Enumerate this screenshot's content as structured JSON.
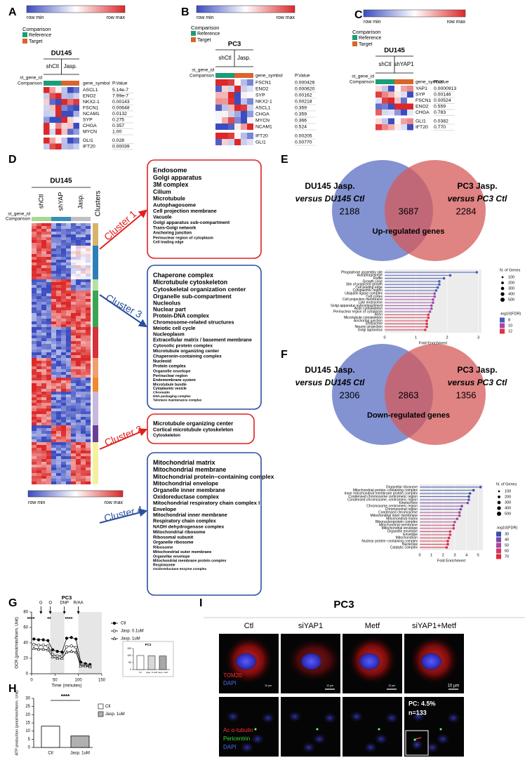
{
  "A": {
    "label": "A",
    "scale": [
      "row min",
      "row max"
    ],
    "legend_title": "Comparison",
    "legend": [
      "Reference",
      "Target"
    ],
    "cell_line": "DU145",
    "groups": [
      "shCtl",
      "Jasp."
    ],
    "row_keys": [
      "st_gene_id",
      "Comparison"
    ],
    "columns": [
      "gene_symbol",
      "P.Value"
    ],
    "rows": [
      [
        "ASCL1",
        "5.14e-7"
      ],
      [
        "ENO2",
        "7.99e-7"
      ],
      [
        "NKX2-1",
        "0.00143"
      ],
      [
        "FSCN1",
        "0.00648"
      ],
      [
        "NCAM1",
        "0.0132"
      ],
      [
        "SYP",
        "0.275"
      ],
      [
        "CHGA",
        "0.357"
      ],
      [
        "MYCN",
        "1.00"
      ]
    ],
    "rows2": [
      [
        "GLI1",
        "0.028"
      ],
      [
        "IFT20",
        "0.00039"
      ]
    ]
  },
  "B": {
    "label": "B",
    "scale": [
      "row min",
      "row max"
    ],
    "legend_title": "Comparison",
    "legend": [
      "Reference",
      "Target"
    ],
    "cell_line": "PC3",
    "groups": [
      "shCtl",
      "Jasp."
    ],
    "row_keys": [
      "st_gene_id",
      "Comparison"
    ],
    "columns": [
      "gene_symbol",
      "P.Value"
    ],
    "rows": [
      [
        "FSCN1",
        "0.000426"
      ],
      [
        "ENO2",
        "0.000620"
      ],
      [
        "SYP",
        "0.00162"
      ],
      [
        "NKX2-1",
        "0.00218"
      ],
      [
        "ASCL1",
        "0.359"
      ],
      [
        "CHGA",
        "0.359"
      ],
      [
        "MYCN",
        "0.366"
      ],
      [
        "NCAM1",
        "0.524"
      ]
    ],
    "rows2": [
      [
        "IFT20",
        "0.00205"
      ],
      [
        "GLI1",
        "0.00770"
      ]
    ]
  },
  "C": {
    "label": "C",
    "scale": [
      "row min",
      "row max"
    ],
    "legend_title": "Comparison",
    "legend": [
      "Reference",
      "Target"
    ],
    "cell_line": "DU145",
    "groups": [
      "shCtl",
      "shYAP1"
    ],
    "row_keys": [
      "st_gene_id",
      "Comparison"
    ],
    "columns": [
      "gene_symbol",
      "P.Value"
    ],
    "rows": [
      [
        "YAP1",
        "0.0000913"
      ],
      [
        "SYP",
        "0.00146"
      ],
      [
        "FSCN1",
        "0.00524"
      ],
      [
        "ENO2",
        "0.559"
      ],
      [
        "CHGA",
        "0.783"
      ]
    ],
    "rows2": [
      [
        "GLI1",
        "0.0382"
      ],
      [
        "IFT20",
        "0.770"
      ]
    ]
  },
  "D": {
    "label": "D",
    "cell_line": "DU145",
    "groups": [
      "shCtl",
      "shYAP",
      "Jasp."
    ],
    "clusters_title": "Clusters",
    "row_keys": [
      "st_gene_id",
      "Comparison"
    ],
    "scale": [
      "row min",
      "row max"
    ],
    "clusters": [
      {
        "name": "Cluster 1",
        "terms": [
          "Endosome",
          "Golgi apparatus",
          "3M complex",
          "Cilium",
          "Microtubule",
          "Autophagosome",
          "Cell projection membrane",
          "Vacuole",
          "Golgi apparatus sub-compartment",
          "Trans-Golgi network",
          "Anchoring junction",
          "Perinuclear region of cytoplasm",
          "Cell leading edge"
        ]
      },
      {
        "name": "Cluster 3",
        "terms": [
          "Chaperone complex",
          "Microtubule cytoskeleton",
          "Cytoskeletal organization center",
          "Organelle sub-compartment",
          "Nucleolus",
          "Nuclear part",
          "Protein-DNA complex",
          "Chromosome-related structures",
          "Meiotic cell cycle",
          "Nucleoplasm",
          "Extracellular matrix / basement membrane",
          "Cytosolic protein complex",
          "Microtubule organizing center",
          "Chaperonin-containing complex",
          "Nucleoid",
          "Protein complex",
          "Organelle envelope",
          "Perinuclear region",
          "Endomembrane system",
          "Microtubule bundle",
          "Cytoplasmic vesicle",
          "Chromatin",
          "DNA packaging complex",
          "Telomere maintenance complex"
        ]
      },
      {
        "name": "Cluster 2",
        "terms": [
          "Microtubule organizing center",
          "Cortical microtubule cytoskeleton",
          "Cytoskeleton"
        ]
      },
      {
        "name": "Cluster 4",
        "terms": [
          "Mitochondrial matrix",
          "Mitochondrial membrane",
          "Mitochondrial protein–containing complex",
          "Mitochondrial envelope",
          "Organelle inner membrane",
          "Oxidoreductase complex",
          "Mitochondrial respiratory chain complex I",
          "Envelope",
          "Mitochondrial inner membrane",
          "Respiratory chain complex",
          "NADH dehydrogenase complex",
          "Mitochondrial ribosome",
          "Ribosomal subunit",
          "Organelle ribosome",
          "Ribosome",
          "Mitochondrial outer membrane",
          "Organellar envelope",
          "Mitochondrial membrane protein complex",
          "Respirasome",
          "Oxidoreductase enzyme complex"
        ]
      }
    ]
  },
  "E": {
    "label": "E",
    "left": [
      "DU145 Jasp.",
      "versus DU145 Ctl"
    ],
    "right": [
      "PC3 Jasp.",
      "versus PC3 Ctl"
    ],
    "counts": [
      "2188",
      "3687",
      "2284"
    ],
    "caption": "Up-regulated genes",
    "chart_data": {
      "type": "lollipop",
      "categories": [
        "Phagophore assembly site",
        "Autophagosome",
        "Ruffle",
        "Growth cone",
        "Site of polarized growth",
        "Cell leading edge",
        "Cytoplasmic region",
        "Ubiquitin ligase complex",
        "Cell cortex",
        "Cell projection membrane",
        "Late endosome",
        "Golgi apparatus subcompartment",
        "Actin cytoskeleton",
        "Perinuclear region of cytoplasm",
        "Axon",
        "Microtubule cytoskeleton",
        "Anchoring junction",
        "Endosome",
        "Neuron projection",
        "Golgi apparatus"
      ],
      "values": [
        2.95,
        2.1,
        1.9,
        1.75,
        1.75,
        1.7,
        1.65,
        1.6,
        1.6,
        1.55,
        1.55,
        1.5,
        1.5,
        1.45,
        1.4,
        1.4,
        1.35,
        1.35,
        1.35,
        1.3
      ],
      "xlim": [
        0,
        3.1
      ],
      "xticks": [
        0,
        1,
        2,
        3
      ],
      "xlabel": "Fold Enrichment",
      "size_title": "N. of Genes",
      "size_ticks": [
        100,
        200,
        300,
        400,
        500
      ],
      "color_title": "-log10(FDR)",
      "color_ticks": [
        8,
        10,
        12
      ],
      "colors": [
        "#4a5bb5",
        "#a04aa8",
        "#e0304a"
      ]
    }
  },
  "F": {
    "label": "F",
    "left": [
      "DU145 Jasp.",
      "versus DU145 Ctl"
    ],
    "right": [
      "PC3 Jasp.",
      "versus PC3 Ctl"
    ],
    "counts": [
      "2306",
      "2863",
      "1356"
    ],
    "caption": "Down-regulated genes",
    "chart_data": {
      "type": "lollipop",
      "categories": [
        "Organellar ribosome",
        "Mitochondrial protein−containing complex",
        "Inner mitochondrial membrane protein complex",
        "Condensed chromosome centromeric region",
        "Condensed chromosome, centromeric region",
        "Kinetochore",
        "Chromosome centromeric region",
        "Chromosomal region",
        "Condensed chromosome",
        "Mitochondrial inner membrane",
        "Mitochondrial matrix",
        "Ribonucleoprotein complex",
        "Mitochondrial membrane",
        "Mitochondrial envelope",
        "Organelle envelope",
        "Envelope",
        "Mitochondrion",
        "Nuclear protein−containing complex",
        "Nucleolus",
        "Catalytic complex"
      ],
      "values": [
        5.2,
        4.6,
        4.3,
        4.2,
        4.2,
        4.1,
        3.6,
        3.5,
        3.4,
        3.4,
        3.2,
        3.0,
        2.9,
        2.9,
        2.6,
        2.6,
        2.5,
        2.4,
        2.4,
        2.3
      ],
      "xlim": [
        0,
        5.4
      ],
      "xticks": [
        0,
        1,
        2,
        3,
        4,
        5
      ],
      "xlabel": "Fold Enrichment",
      "size_title": "N. of Genes",
      "size_ticks": [
        100,
        200,
        300,
        400,
        500
      ],
      "color_title": "-log10(FDR)",
      "color_ticks": [
        30,
        40,
        50,
        60,
        70
      ],
      "colors": [
        "#3a4fa8",
        "#7a48a8",
        "#a84898",
        "#d03a6a",
        "#e0283a"
      ]
    }
  },
  "G": {
    "label": "G",
    "chart_data": {
      "type": "line",
      "title": "PC3",
      "xlabel": "Time (minutes)",
      "ylabel": "OCR (pmol/min/Norm. Unit)",
      "x": [
        5,
        15,
        25,
        35,
        45,
        55,
        65,
        75,
        85,
        95,
        105,
        115,
        125
      ],
      "series": [
        {
          "name": "Ctl",
          "values": [
            45,
            44,
            44,
            43,
            31,
            29,
            28,
            46,
            47,
            45,
            15,
            13,
            12
          ]
        },
        {
          "name": "Jasp. 0.1uM",
          "values": [
            38,
            37,
            37,
            36,
            25,
            23,
            23,
            35,
            36,
            34,
            12,
            11,
            10
          ]
        },
        {
          "name": "Jasp. 1uM",
          "values": [
            33,
            32,
            32,
            31,
            22,
            20,
            20,
            28,
            29,
            28,
            10,
            10,
            9
          ]
        }
      ],
      "xlim": [
        0,
        150
      ],
      "xticks": [
        0,
        50,
        100,
        150
      ],
      "ylim": [
        0,
        80
      ],
      "yticks": [
        0,
        20,
        40,
        60,
        80
      ],
      "injections": [
        {
          "label": "G",
          "x": 20
        },
        {
          "label": "O",
          "x": 40
        },
        {
          "label": "DNP",
          "x": 70
        },
        {
          "label": "R/AA",
          "x": 100
        }
      ],
      "significance": [
        "****",
        "**",
        "****"
      ],
      "inset": {
        "type": "bar",
        "title": "PC3",
        "categories": [
          "Ctl",
          "Jasp. 0.1uM",
          "Jasp. 1uM"
        ],
        "values": [
          100,
          98,
          97
        ],
        "ylim": [
          0,
          150
        ],
        "yticks": [
          0,
          50,
          100,
          150
        ]
      }
    }
  },
  "H": {
    "label": "H",
    "chart_data": {
      "type": "bar",
      "ylabel": "ATP production (pmol/min/Norm. Unit)",
      "categories": [
        "Ctl",
        "Jasp. 1uM"
      ],
      "values": [
        13,
        7
      ],
      "ylim": [
        0,
        30
      ],
      "yticks": [
        0,
        5,
        10,
        15,
        20,
        25,
        30
      ],
      "significance": "****",
      "colors": [
        "#ffffff",
        "#b0b0b0"
      ]
    }
  },
  "I": {
    "label": "I",
    "title": "PC3",
    "columns": [
      "Ctl",
      "siYAP1",
      "Metf",
      "siYAP1+Metf"
    ],
    "row1": [
      "TOM20",
      "DAPI"
    ],
    "row2": [
      "Ac α-tubulin",
      "Pericentrin",
      "DAPI"
    ],
    "scale_bars": [
      "10 µm",
      "10 µm",
      "10 µm",
      "10 µm"
    ],
    "note": [
      "PC: 4.5%",
      "n=133"
    ]
  }
}
